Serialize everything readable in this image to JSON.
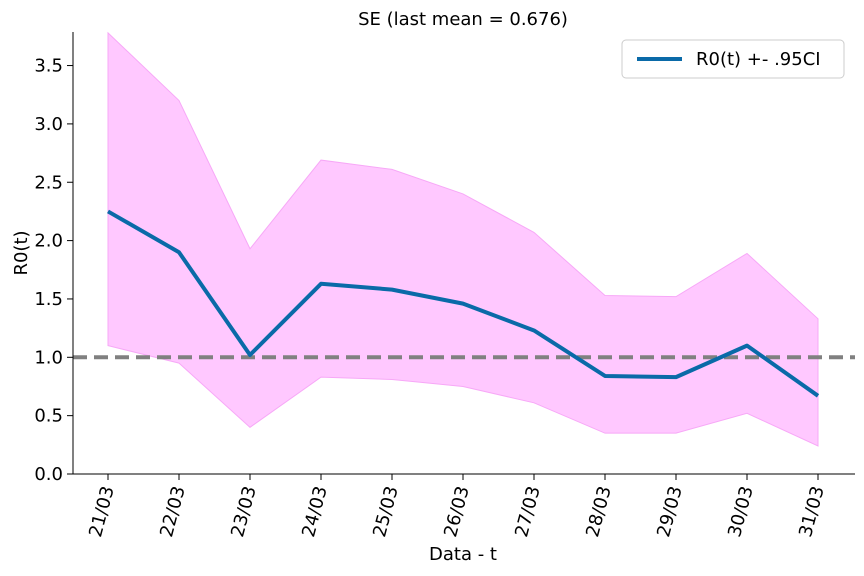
{
  "chart_data": {
    "type": "line",
    "title": "SE (last mean = 0.676)",
    "xlabel": "Data - t",
    "ylabel": "R0(t)",
    "categories": [
      "21/03",
      "22/03",
      "23/03",
      "24/03",
      "25/03",
      "26/03",
      "27/03",
      "28/03",
      "29/03",
      "30/03",
      "31/03"
    ],
    "series": [
      {
        "name": "R0(t) +- .95CI",
        "values": [
          2.25,
          1.9,
          1.02,
          1.63,
          1.58,
          1.46,
          1.23,
          0.84,
          0.83,
          1.1,
          0.67
        ],
        "lower": [
          1.1,
          0.95,
          0.4,
          0.83,
          0.81,
          0.75,
          0.61,
          0.35,
          0.35,
          0.52,
          0.24
        ],
        "upper": [
          3.78,
          3.2,
          1.93,
          2.69,
          2.61,
          2.4,
          2.07,
          1.53,
          1.52,
          1.89,
          1.33
        ]
      }
    ],
    "reference_line": {
      "y": 1.0,
      "style": "dashed"
    },
    "ylim": [
      0,
      3.8
    ],
    "yticks": [
      "0.0",
      "0.5",
      "1.0",
      "1.5",
      "2.0",
      "2.5",
      "3.0",
      "3.5"
    ],
    "grid": false,
    "legend_position": "top-right",
    "colors": {
      "line": "#0a6aa8",
      "band": "#ffc8ff",
      "band_edge": "#f7a8f7",
      "reference": "#808080"
    }
  }
}
